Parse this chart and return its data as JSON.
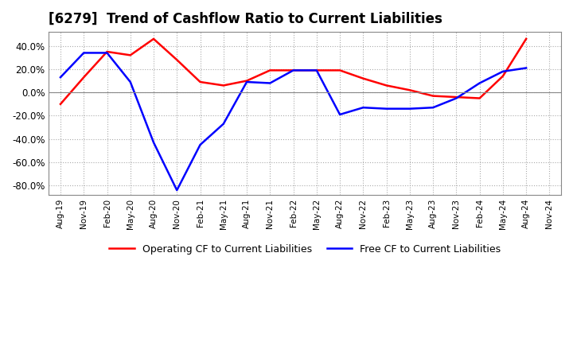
{
  "title": "[6279]  Trend of Cashflow Ratio to Current Liabilities",
  "title_fontsize": 12,
  "ylim": [
    -0.88,
    0.52
  ],
  "yticks": [
    -0.8,
    -0.6,
    -0.4,
    -0.2,
    0.0,
    0.2,
    0.4
  ],
  "x_labels": [
    "Aug-19",
    "Nov-19",
    "Feb-20",
    "May-20",
    "Aug-20",
    "Nov-20",
    "Feb-21",
    "May-21",
    "Aug-21",
    "Nov-21",
    "Feb-22",
    "May-22",
    "Aug-22",
    "Nov-22",
    "Feb-23",
    "May-23",
    "Aug-23",
    "Nov-23",
    "Feb-24",
    "May-24",
    "Aug-24",
    "Nov-24"
  ],
  "operating_cf": [
    -0.1,
    0.13,
    0.35,
    0.32,
    0.46,
    0.28,
    0.09,
    0.06,
    0.1,
    0.19,
    0.19,
    0.19,
    0.19,
    0.12,
    0.06,
    0.02,
    -0.03,
    -0.04,
    -0.05,
    0.14,
    0.46,
    null
  ],
  "free_cf": [
    0.13,
    0.34,
    0.34,
    0.09,
    -0.43,
    -0.84,
    -0.45,
    -0.27,
    0.09,
    0.08,
    0.19,
    0.19,
    -0.19,
    -0.13,
    -0.14,
    -0.14,
    -0.13,
    -0.05,
    0.08,
    0.18,
    0.21,
    null
  ],
  "operating_color": "#ff0000",
  "free_color": "#0000ff",
  "line_width": 1.8,
  "grid_color": "#aaaaaa",
  "background_color": "#ffffff",
  "legend_op": "Operating CF to Current Liabilities",
  "legend_free": "Free CF to Current Liabilities"
}
